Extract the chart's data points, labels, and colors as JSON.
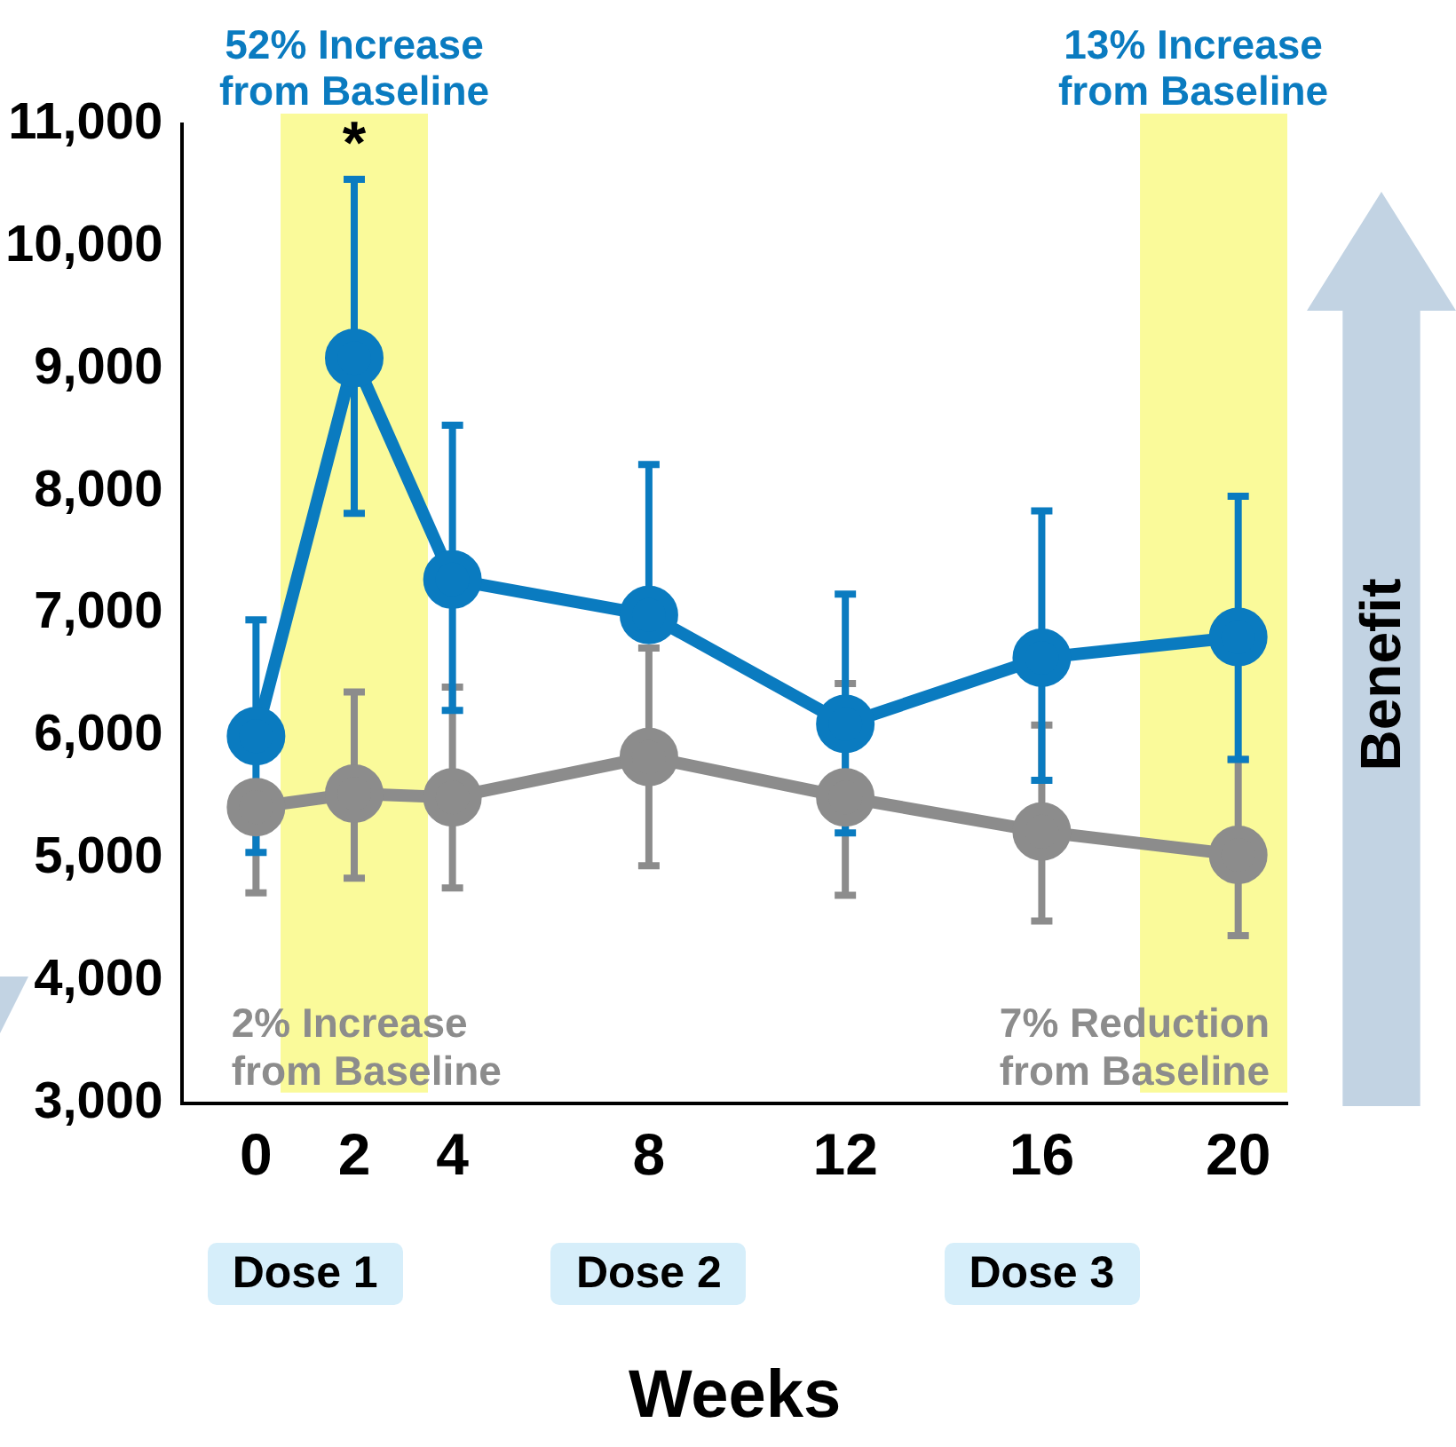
{
  "chart_data": {
    "type": "line",
    "xlabel": "Weeks",
    "x": [
      0,
      2,
      4,
      8,
      12,
      16,
      20
    ],
    "series": [
      {
        "color": "#0a7bc0",
        "values": [
          6000,
          9090,
          7280,
          6990,
          6100,
          6640,
          6810
        ],
        "errors": [
          [
            5050,
            6950
          ],
          [
            7820,
            10550
          ],
          [
            6210,
            8540
          ],
          [
            6990,
            8220
          ],
          [
            5210,
            7160
          ],
          [
            5640,
            7840
          ],
          [
            5810,
            7960
          ]
        ]
      },
      {
        "color": "#8c8c8c",
        "values": [
          5420,
          5530,
          5500,
          5830,
          5500,
          5220,
          5030
        ],
        "errors": [
          [
            4720,
            5420
          ],
          [
            4840,
            6360
          ],
          [
            4760,
            6400
          ],
          [
            4940,
            6720
          ],
          [
            4700,
            6430
          ],
          [
            4490,
            6090
          ],
          [
            4370,
            5810
          ]
        ]
      }
    ],
    "xlim": [
      -1.5,
      21
    ],
    "xticks": [
      0,
      2,
      4,
      8,
      12,
      16,
      20
    ],
    "ylim": [
      3000,
      11000
    ],
    "yticks": [
      {
        "value": 3000,
        "label": "3,000"
      },
      {
        "value": 4000,
        "label": "4,000"
      },
      {
        "value": 5000,
        "label": "5,000"
      },
      {
        "value": 6000,
        "label": "6,000"
      },
      {
        "value": 7000,
        "label": "7,000"
      },
      {
        "value": 8000,
        "label": "8,000"
      },
      {
        "value": 9000,
        "label": "9,000"
      },
      {
        "value": 10000,
        "label": "10,000"
      },
      {
        "value": 11000,
        "label": "11,000"
      }
    ],
    "bands": [
      {
        "axis": "x",
        "from": 0.5,
        "to": 3.5,
        "color": "#fafa9a"
      },
      {
        "axis": "x",
        "from": 18,
        "to": 21,
        "color": "#fafa9a"
      }
    ],
    "annotations": [
      "52% Increase\nfrom Baseline",
      "13% Increase\nfrom Baseline",
      "2% Increase\nfrom Baseline",
      "7% Reduction\nfrom Baseline",
      "Dose 1",
      "Dose 2",
      "Dose 3",
      "Benefit",
      "*"
    ],
    "marker": "circle",
    "line_style": "solid",
    "grid": false,
    "legend": false
  }
}
